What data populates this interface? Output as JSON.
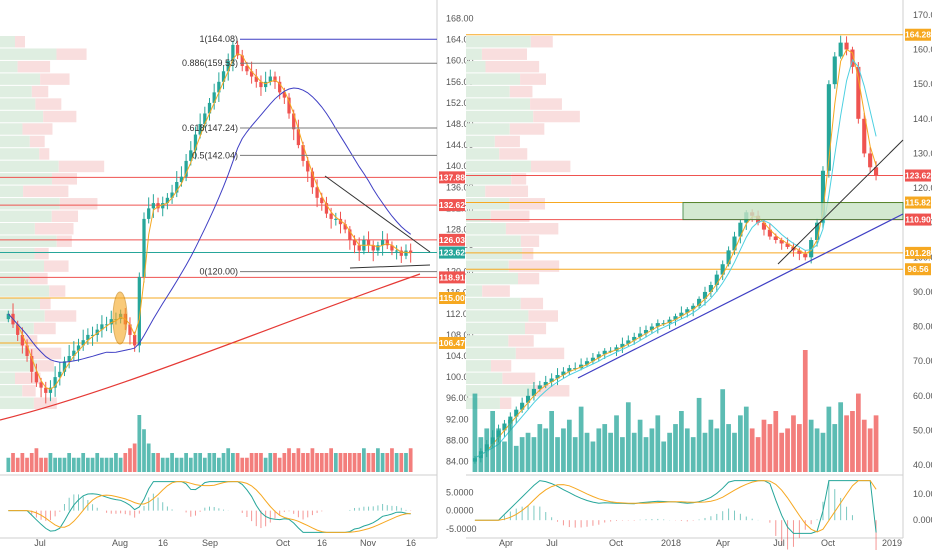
{
  "colors": {
    "up": "#26a69a",
    "down": "#ef5350",
    "ma_blue": "#3f3fc4",
    "ma_red": "#e53935",
    "orange": "#f6a821",
    "grid": "#eeeeee",
    "axis_text": "#555555",
    "vp_green": "#dfeee1",
    "vp_red": "#f9dede",
    "zone_green": "#c9e4c5"
  },
  "chart_data": [
    {
      "type": "candlestick",
      "panel": "left-price",
      "x_ticks": [
        "Jul",
        "Aug",
        "16",
        "Sep",
        "Oct",
        "16",
        "Nov",
        "16"
      ],
      "y_ticks": [
        84,
        88,
        92,
        96,
        100,
        104,
        108,
        112,
        116,
        120,
        124,
        128,
        132,
        136,
        140,
        144,
        148,
        152,
        156,
        160,
        164,
        168
      ],
      "ylim": [
        82,
        170
      ],
      "price_labels": [
        {
          "text": "137.88",
          "value": 137.88,
          "kind": "red"
        },
        {
          "text": "132.62",
          "value": 132.62,
          "kind": "red"
        },
        {
          "text": "126.03",
          "value": 126.03,
          "kind": "red"
        },
        {
          "text": "123.62",
          "value": 123.62,
          "kind": "green"
        },
        {
          "text": "118.91",
          "value": 118.91,
          "kind": "red"
        },
        {
          "text": "115.00",
          "value": 115.0,
          "kind": "orange"
        },
        {
          "text": "106.47",
          "value": 106.47,
          "kind": "orange"
        }
      ],
      "fib_levels": [
        {
          "text": "1(164.08)",
          "value": 164.08
        },
        {
          "text": "0.886(159.53)",
          "value": 159.53
        },
        {
          "text": "0.618(147.24)",
          "value": 147.24
        },
        {
          "text": "0.5(142.04)",
          "value": 142.04
        },
        {
          "text": "0(120.00)",
          "value": 120.0
        }
      ],
      "closes": [
        112,
        110,
        108,
        106,
        104,
        101,
        99,
        98,
        97,
        98,
        100,
        101,
        103,
        104,
        105,
        106,
        107,
        108,
        108,
        109,
        110,
        110,
        111,
        111,
        112,
        110,
        108,
        106,
        119,
        130,
        132,
        133,
        132,
        133,
        134,
        135,
        137,
        138,
        141,
        143,
        146,
        148,
        150,
        152,
        154,
        156,
        158,
        160,
        163,
        161,
        159,
        158,
        157,
        156,
        155,
        156,
        157,
        156,
        154,
        153,
        150,
        147,
        144,
        141,
        139,
        136,
        134,
        133,
        131,
        130,
        130,
        129,
        128,
        126,
        125,
        124,
        126,
        125,
        124,
        125,
        126,
        125,
        124,
        124,
        123,
        124,
        123.6
      ]
    },
    {
      "type": "bar",
      "panel": "left-volume",
      "values": [
        3,
        4,
        3,
        4,
        3,
        4,
        5,
        3,
        3,
        4,
        3,
        3,
        3,
        4,
        3,
        3,
        4,
        3,
        3,
        4,
        3,
        3,
        3,
        4,
        3,
        4,
        5,
        6,
        12,
        9,
        6,
        4,
        4,
        3,
        3,
        4,
        3,
        3,
        4,
        3,
        4,
        4,
        3,
        4,
        4,
        3,
        4,
        5,
        4,
        4,
        3,
        3,
        4,
        4,
        4,
        3,
        4,
        4,
        3,
        4,
        5,
        4,
        5,
        4,
        4,
        5,
        4,
        4,
        4,
        5,
        4,
        4,
        4,
        4,
        4,
        4,
        5,
        4,
        4,
        5,
        4,
        4,
        5,
        4,
        4,
        4,
        5
      ]
    },
    {
      "type": "line",
      "panel": "left-macd",
      "y_ticks": [
        "5.0000",
        "0.0000",
        "-5.0000"
      ],
      "ylim": [
        -7,
        9
      ]
    },
    {
      "type": "candlestick",
      "panel": "right-price",
      "x_ticks": [
        "Apr",
        "Jul",
        "Oct",
        "2018",
        "Apr",
        "Jul",
        "Oct",
        "2019"
      ],
      "y_ticks": [
        40,
        50,
        60,
        70,
        80,
        90,
        100,
        110,
        120,
        130,
        140,
        150,
        160,
        170
      ],
      "ylim": [
        38,
        172
      ],
      "price_labels": [
        {
          "text": "164.28",
          "value": 164.28,
          "kind": "orange"
        },
        {
          "text": "123.62",
          "value": 123.62,
          "kind": "red"
        },
        {
          "text": "115.82",
          "value": 115.82,
          "kind": "orange"
        },
        {
          "text": "110.90",
          "value": 110.9,
          "kind": "red"
        },
        {
          "text": "101.28",
          "value": 101.28,
          "kind": "orange"
        },
        {
          "text": "96.56",
          "value": 96.56,
          "kind": "orange"
        }
      ],
      "closes": [
        42,
        44,
        46,
        48,
        50,
        52,
        54,
        56,
        58,
        60,
        62,
        63,
        64,
        65,
        66,
        67,
        68,
        68,
        69,
        70,
        71,
        72,
        73,
        73,
        74,
        75,
        76,
        77,
        78,
        79,
        80,
        81,
        81,
        82,
        83,
        84,
        85,
        86,
        88,
        90,
        92,
        95,
        98,
        102,
        106,
        110,
        113,
        112,
        110,
        108,
        106,
        105,
        104,
        103,
        102,
        101,
        100,
        105,
        110,
        125,
        150,
        158,
        162,
        160,
        155,
        140,
        130,
        126,
        123.6
      ]
    },
    {
      "type": "bar",
      "panel": "right-volume",
      "values": [
        18,
        8,
        10,
        14,
        10,
        7,
        12,
        6,
        8,
        9,
        8,
        11,
        10,
        14,
        8,
        10,
        12,
        8,
        15,
        9,
        7,
        10,
        11,
        9,
        13,
        8,
        16,
        9,
        12,
        8,
        10,
        13,
        7,
        9,
        11,
        14,
        10,
        8,
        17,
        9,
        12,
        10,
        19,
        11,
        9,
        13,
        15,
        10,
        8,
        12,
        11,
        14,
        9,
        10,
        13,
        11,
        28,
        12,
        10,
        9,
        15,
        11,
        16,
        13,
        14,
        18,
        12,
        10,
        13
      ]
    },
    {
      "type": "line",
      "panel": "right-macd",
      "y_ticks": [
        "10.0000",
        "0.0000"
      ],
      "ylim": [
        -6,
        16
      ]
    }
  ]
}
